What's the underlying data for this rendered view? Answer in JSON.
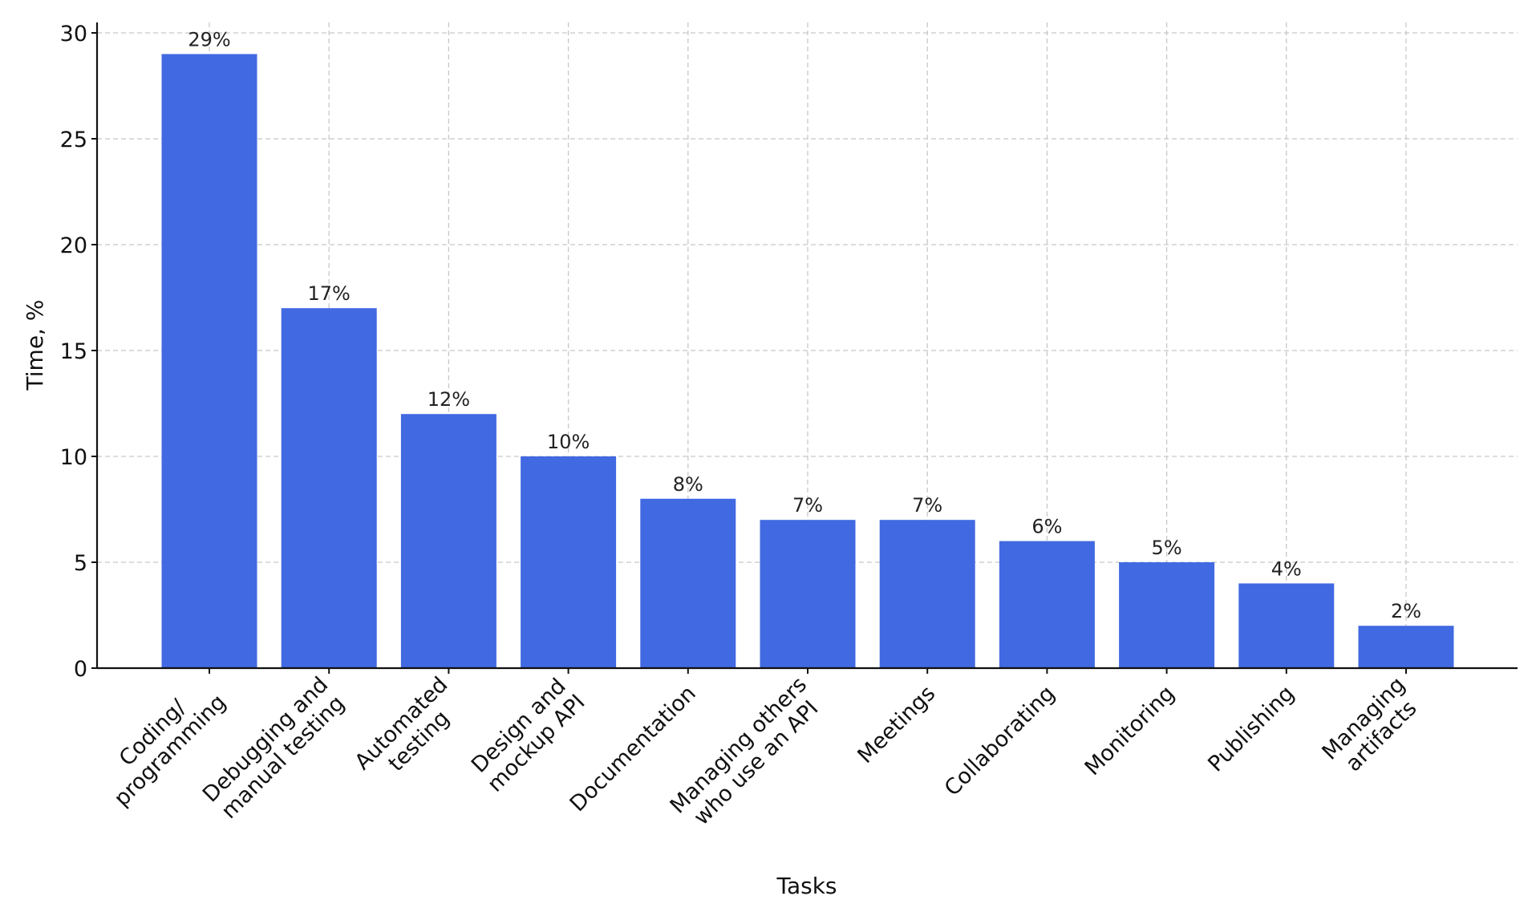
{
  "chart_data": {
    "type": "bar",
    "categories": [
      [
        "Coding/",
        "programming"
      ],
      [
        "Debugging and",
        "manual testing"
      ],
      [
        "Automated",
        "testing"
      ],
      [
        "Design and",
        "mockup API"
      ],
      [
        "Documentation"
      ],
      [
        "Managing others",
        "who use an API"
      ],
      [
        "Meetings"
      ],
      [
        "Collaborating"
      ],
      [
        "Monitoring"
      ],
      [
        "Publishing"
      ],
      [
        "Managing",
        "artifacts"
      ]
    ],
    "values": [
      29,
      17,
      12,
      10,
      8,
      7,
      7,
      6,
      5,
      4,
      2
    ],
    "data_labels": [
      "29%",
      "17%",
      "12%",
      "10%",
      "8%",
      "7%",
      "7%",
      "6%",
      "5%",
      "4%",
      "2%"
    ],
    "title": "",
    "xlabel": "Tasks",
    "ylabel": "Time, %",
    "ylim": [
      0,
      30.5
    ],
    "yticks": [
      0,
      5,
      10,
      15,
      20,
      25,
      30
    ],
    "grid": true,
    "bar_color": "#4169e1",
    "grid_color": "#c8c8c8",
    "x_tick_rotation_deg": 45
  }
}
